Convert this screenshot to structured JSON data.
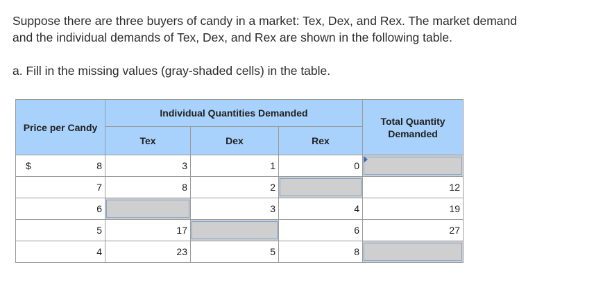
{
  "intro": {
    "line1": "Suppose there are three buyers of candy in a market: Tex, Dex, and Rex. The market demand",
    "line2": "and the individual demands of Tex, Dex, and Rex are shown in the following table."
  },
  "instruction": "a. Fill in the missing values (gray-shaded cells) in the table.",
  "table": {
    "price_header": "Price per Candy",
    "group_header": "Individual Quantities Demanded",
    "total_header": "Total Quantity Demanded",
    "buyers": [
      "Tex",
      "Dex",
      "Rex"
    ],
    "currency": "$",
    "cell_colors": {
      "header": "#a8d2fb",
      "missing": "#cfcfcf",
      "flag": "#3d6fc0"
    },
    "rows": [
      {
        "price": "8",
        "tex": "3",
        "dex": "1",
        "rex": "0",
        "total": ""
      },
      {
        "price": "7",
        "tex": "8",
        "dex": "2",
        "rex": "",
        "total": "12"
      },
      {
        "price": "6",
        "tex": "",
        "dex": "3",
        "rex": "4",
        "total": "19"
      },
      {
        "price": "5",
        "tex": "17",
        "dex": "",
        "rex": "6",
        "total": "27"
      },
      {
        "price": "4",
        "tex": "23",
        "dex": "5",
        "rex": "8",
        "total": ""
      }
    ]
  }
}
